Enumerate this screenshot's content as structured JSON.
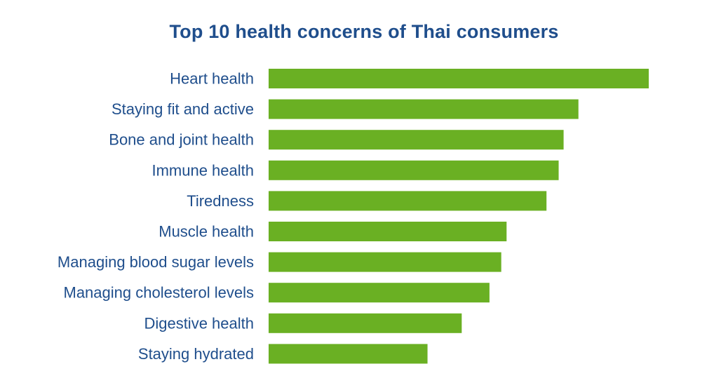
{
  "chart_data": {
    "type": "bar",
    "orientation": "horizontal",
    "title": "Top 10 health concerns of Thai consumers",
    "xlabel": "",
    "ylabel": "",
    "categories": [
      "Heart health",
      "Staying fit and active",
      "Bone and joint health",
      "Immune health",
      "Tiredness",
      "Muscle health",
      "Managing blood sugar levels",
      "Managing cholesterol levels",
      "Digestive health",
      "Staying hydrated"
    ],
    "values": [
      100,
      81.5,
      77.6,
      76.3,
      73.1,
      62.6,
      61.2,
      58.1,
      50.8,
      41.8
    ],
    "value_scale": "relative, largest = 100 (no axis or values printed)",
    "xlim": [
      0,
      100
    ],
    "grid": false,
    "legend": "none",
    "bar_color": "#6ab023",
    "label_color": "#1f4e8c",
    "title_color": "#1f4e8c"
  }
}
